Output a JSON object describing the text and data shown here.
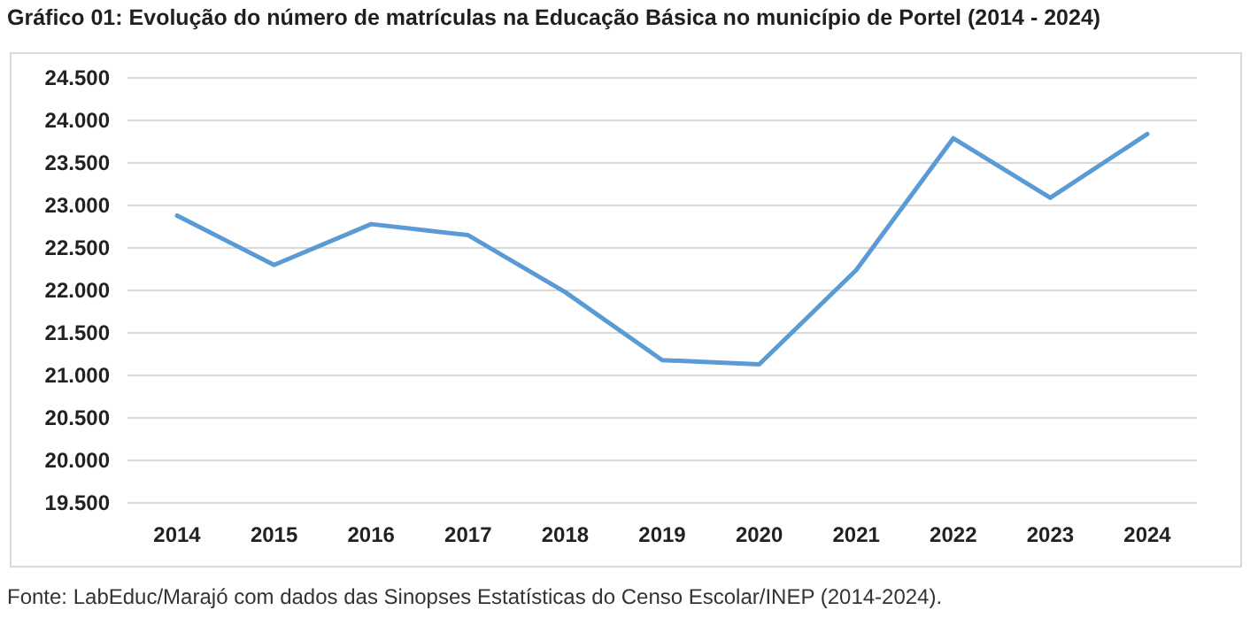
{
  "chart_data": {
    "type": "line",
    "title": "Gráfico 01: Evolução do número de matrículas na Educação Básica no município de Portel (2014 - 2024)",
    "categories": [
      "2014",
      "2015",
      "2016",
      "2017",
      "2018",
      "2019",
      "2020",
      "2021",
      "2022",
      "2023",
      "2024"
    ],
    "series": [
      {
        "color": "#5b9bd5",
        "values": [
          22880,
          22300,
          22780,
          22650,
          21980,
          21180,
          21130,
          22240,
          23790,
          23090,
          23840
        ]
      }
    ],
    "ylim": [
      19500,
      24500
    ],
    "yticks": [
      {
        "value": 19500,
        "label": "19.500"
      },
      {
        "value": 20000,
        "label": "20.000"
      },
      {
        "value": 20500,
        "label": "20.500"
      },
      {
        "value": 21000,
        "label": "21.000"
      },
      {
        "value": 21500,
        "label": "21.500"
      },
      {
        "value": 22000,
        "label": "22.000"
      },
      {
        "value": 22500,
        "label": "22.500"
      },
      {
        "value": 23000,
        "label": "23.000"
      },
      {
        "value": 23500,
        "label": "23.500"
      },
      {
        "value": 24000,
        "label": "24.000"
      },
      {
        "value": 24500,
        "label": "24.500"
      }
    ],
    "grid": "y",
    "marker": "none",
    "line_style": "solid",
    "annotations": [
      "Fonte: LabEduc/Marajó com dados das Sinopses Estatísticas do Censo Escolar/INEP (2014-2024)."
    ]
  }
}
